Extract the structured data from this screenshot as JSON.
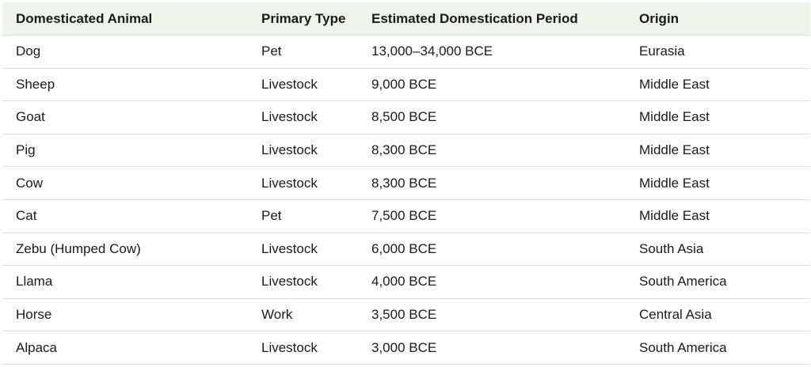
{
  "table": {
    "headers": [
      "Domesticated Animal",
      "Primary Type",
      "Estimated Domestication Period",
      "Origin"
    ],
    "rows": [
      [
        "Dog",
        "Pet",
        "13,000–34,000 BCE",
        "Eurasia"
      ],
      [
        "Sheep",
        "Livestock",
        "9,000 BCE",
        "Middle East"
      ],
      [
        "Goat",
        "Livestock",
        "8,500 BCE",
        "Middle East"
      ],
      [
        "Pig",
        "Livestock",
        "8,300 BCE",
        "Middle East"
      ],
      [
        "Cow",
        "Livestock",
        "8,300 BCE",
        "Middle East"
      ],
      [
        "Cat",
        "Pet",
        "7,500 BCE",
        "Middle East"
      ],
      [
        "Zebu (Humped Cow)",
        "Livestock",
        "6,000 BCE",
        "South Asia"
      ],
      [
        "Llama",
        "Livestock",
        "4,000 BCE",
        "South America"
      ],
      [
        "Horse",
        "Work",
        "3,500 BCE",
        "Central Asia"
      ],
      [
        "Alpaca",
        "Livestock",
        "3,000 BCE",
        "South America"
      ]
    ]
  },
  "colors": {
    "header_background": "#eef4e8",
    "row_divider": "#dedede"
  }
}
